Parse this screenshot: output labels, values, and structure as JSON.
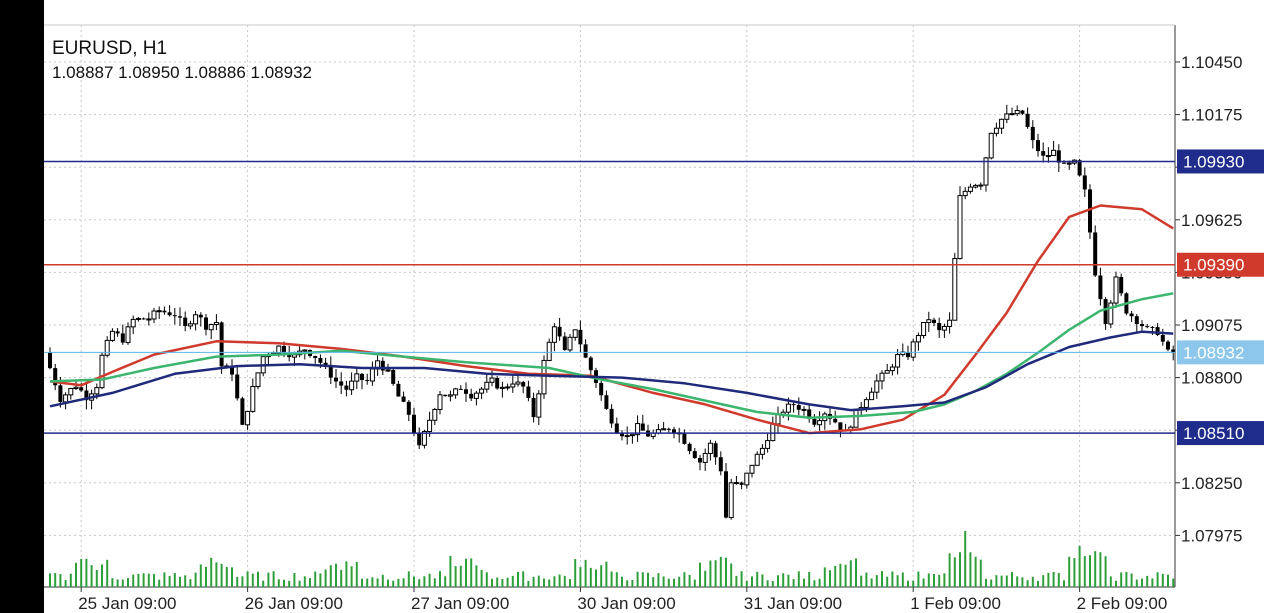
{
  "header": {
    "symbol_tf": "EURUSD, H1",
    "ohlc": "1.08887 1.08950 1.08886 1.08932"
  },
  "colors": {
    "background": "#ffffff",
    "grid": "#c8c8c8",
    "candle": "#000000",
    "volume": "#2e9e3a",
    "ma_red": "#d03a2c",
    "ma_green": "#3cb56f",
    "ma_navy": "#1f2a7a",
    "hline_navy": "#1f2c8c",
    "hline_red": "#d03a2c",
    "hline_lightblue": "#5ab4e6",
    "label_lightblue": "#8dc8ec"
  },
  "chart_data": {
    "type": "candlestick",
    "ylim": [
      1.0786,
      1.1058
    ],
    "y_ticks": [
      "1.10450",
      "1.10175",
      "1.09900",
      "1.09625",
      "1.09350",
      "1.09075",
      "1.08800",
      "1.08525",
      "1.08250",
      "1.07975"
    ],
    "x_ticks": [
      "25 Jan 09:00",
      "26 Jan 09:00",
      "27 Jan 09:00",
      "30 Jan 09:00",
      "31 Jan 09:00",
      "1 Feb 09:00",
      "2 Feb 09:00"
    ],
    "horizontal_lines": [
      {
        "price": 1.0993,
        "label": "1.09930",
        "color": "#1f2c8c"
      },
      {
        "price": 1.0939,
        "label": "1.09390",
        "color": "#d03a2c"
      },
      {
        "price": 1.08932,
        "label": "1.08932",
        "color": "#5ab4e6"
      },
      {
        "price": 1.0851,
        "label": "1.08510",
        "color": "#1f2c8c"
      }
    ],
    "moving_averages": [
      {
        "color": "#d03a2c",
        "points": [
          [
            0,
            1.0878
          ],
          [
            6,
            1.0876
          ],
          [
            12,
            1.0883
          ],
          [
            20,
            1.0892
          ],
          [
            32,
            1.0899
          ],
          [
            44,
            1.0898
          ],
          [
            56,
            1.0895
          ],
          [
            68,
            1.0891
          ],
          [
            80,
            1.0886
          ],
          [
            92,
            1.0882
          ],
          [
            104,
            1.0881
          ],
          [
            116,
            1.0872
          ],
          [
            126,
            1.0866
          ],
          [
            136,
            1.0858
          ],
          [
            146,
            1.0851
          ],
          [
            156,
            1.0853
          ],
          [
            164,
            1.0858
          ],
          [
            172,
            1.0871
          ],
          [
            178,
            1.0892
          ],
          [
            184,
            1.0914
          ],
          [
            190,
            1.0941
          ],
          [
            196,
            1.0964
          ],
          [
            202,
            1.097
          ],
          [
            210,
            1.0968
          ],
          [
            216,
            1.0958
          ]
        ]
      },
      {
        "color": "#3cb56f",
        "points": [
          [
            0,
            1.0878
          ],
          [
            10,
            1.0879
          ],
          [
            20,
            1.0885
          ],
          [
            32,
            1.0891
          ],
          [
            44,
            1.0892
          ],
          [
            56,
            1.0894
          ],
          [
            68,
            1.0891
          ],
          [
            80,
            1.0888
          ],
          [
            96,
            1.0885
          ],
          [
            106,
            1.0879
          ],
          [
            116,
            1.0874
          ],
          [
            126,
            1.0868
          ],
          [
            136,
            1.0862
          ],
          [
            146,
            1.0859
          ],
          [
            156,
            1.086
          ],
          [
            166,
            1.0862
          ],
          [
            172,
            1.0866
          ],
          [
            178,
            1.0873
          ],
          [
            184,
            1.0882
          ],
          [
            190,
            1.0893
          ],
          [
            196,
            1.0905
          ],
          [
            202,
            1.0915
          ],
          [
            210,
            1.0921
          ],
          [
            216,
            1.0924
          ]
        ]
      },
      {
        "color": "#1f2a7a",
        "points": [
          [
            0,
            1.0865
          ],
          [
            12,
            1.0872
          ],
          [
            24,
            1.0882
          ],
          [
            36,
            1.0886
          ],
          [
            48,
            1.0887
          ],
          [
            60,
            1.0885
          ],
          [
            72,
            1.0885
          ],
          [
            84,
            1.0882
          ],
          [
            96,
            1.0881
          ],
          [
            110,
            1.088
          ],
          [
            122,
            1.0877
          ],
          [
            134,
            1.0872
          ],
          [
            146,
            1.0866
          ],
          [
            154,
            1.0863
          ],
          [
            164,
            1.0865
          ],
          [
            172,
            1.0867
          ],
          [
            180,
            1.0875
          ],
          [
            188,
            1.0887
          ],
          [
            196,
            1.0896
          ],
          [
            204,
            1.0901
          ],
          [
            210,
            1.0904
          ],
          [
            216,
            1.0903
          ]
        ]
      }
    ],
    "price_path": [
      [
        0,
        1.0893
      ],
      [
        3,
        1.0869
      ],
      [
        6,
        1.0876
      ],
      [
        8,
        1.087
      ],
      [
        10,
        1.0876
      ],
      [
        11,
        1.0891
      ],
      [
        13,
        1.0904
      ],
      [
        15,
        1.09
      ],
      [
        17,
        1.091
      ],
      [
        20,
        1.0911
      ],
      [
        22,
        1.0915
      ],
      [
        25,
        1.0913
      ],
      [
        27,
        1.0906
      ],
      [
        29,
        1.0914
      ],
      [
        31,
        1.0907
      ],
      [
        33,
        1.0909
      ],
      [
        34,
        1.0886
      ],
      [
        36,
        1.0883
      ],
      [
        38,
        1.0854
      ],
      [
        40,
        1.0874
      ],
      [
        42,
        1.0891
      ],
      [
        45,
        1.0896
      ],
      [
        48,
        1.0891
      ],
      [
        50,
        1.0895
      ],
      [
        52,
        1.0891
      ],
      [
        54,
        1.0885
      ],
      [
        56,
        1.0878
      ],
      [
        58,
        1.0874
      ],
      [
        60,
        1.088
      ],
      [
        62,
        1.0878
      ],
      [
        64,
        1.0889
      ],
      [
        66,
        1.0882
      ],
      [
        68,
        1.087
      ],
      [
        70,
        1.0861
      ],
      [
        72,
        1.0843
      ],
      [
        74,
        1.0858
      ],
      [
        76,
        1.0872
      ],
      [
        78,
        1.087
      ],
      [
        80,
        1.0875
      ],
      [
        82,
        1.0871
      ],
      [
        84,
        1.0874
      ],
      [
        86,
        1.0878
      ],
      [
        88,
        1.0874
      ],
      [
        90,
        1.0878
      ],
      [
        92,
        1.0875
      ],
      [
        94,
        1.086
      ],
      [
        95,
        1.0873
      ],
      [
        96,
        1.0888
      ],
      [
        98,
        1.0908
      ],
      [
        100,
        1.0893
      ],
      [
        102,
        1.0906
      ],
      [
        104,
        1.089
      ],
      [
        106,
        1.0878
      ],
      [
        108,
        1.0863
      ],
      [
        110,
        1.0853
      ],
      [
        112,
        1.0849
      ],
      [
        114,
        1.0854
      ],
      [
        116,
        1.085
      ],
      [
        118,
        1.0851
      ],
      [
        120,
        1.0854
      ],
      [
        122,
        1.0851
      ],
      [
        124,
        1.0843
      ],
      [
        126,
        1.0836
      ],
      [
        128,
        1.0845
      ],
      [
        130,
        1.0832
      ],
      [
        131,
        1.0807
      ],
      [
        132,
        1.0825
      ],
      [
        134,
        1.0823
      ],
      [
        136,
        1.0835
      ],
      [
        138,
        1.0843
      ],
      [
        140,
        1.0855
      ],
      [
        142,
        1.0863
      ],
      [
        144,
        1.0866
      ],
      [
        146,
        1.0863
      ],
      [
        148,
        1.0857
      ],
      [
        150,
        1.0862
      ],
      [
        152,
        1.0857
      ],
      [
        154,
        1.0851
      ],
      [
        156,
        1.0861
      ],
      [
        158,
        1.087
      ],
      [
        160,
        1.0878
      ],
      [
        162,
        1.0883
      ],
      [
        164,
        1.0891
      ],
      [
        166,
        1.0892
      ],
      [
        168,
        1.0903
      ],
      [
        170,
        1.0911
      ],
      [
        172,
        1.0904
      ],
      [
        174,
        1.0909
      ],
      [
        176,
        1.0974
      ],
      [
        178,
        1.0981
      ],
      [
        180,
        1.0982
      ],
      [
        182,
        1.1009
      ],
      [
        184,
        1.1015
      ],
      [
        186,
        1.1018
      ],
      [
        188,
        1.1018
      ],
      [
        190,
        1.1003
      ],
      [
        192,
        1.0995
      ],
      [
        194,
        1.0998
      ],
      [
        196,
        1.099
      ],
      [
        198,
        1.0992
      ],
      [
        200,
        1.0977
      ],
      [
        202,
        1.0935
      ],
      [
        204,
        1.091
      ],
      [
        206,
        1.0931
      ],
      [
        208,
        1.0915
      ],
      [
        210,
        1.091
      ],
      [
        212,
        1.0905
      ],
      [
        214,
        1.0904
      ],
      [
        216,
        1.0893
      ]
    ]
  }
}
